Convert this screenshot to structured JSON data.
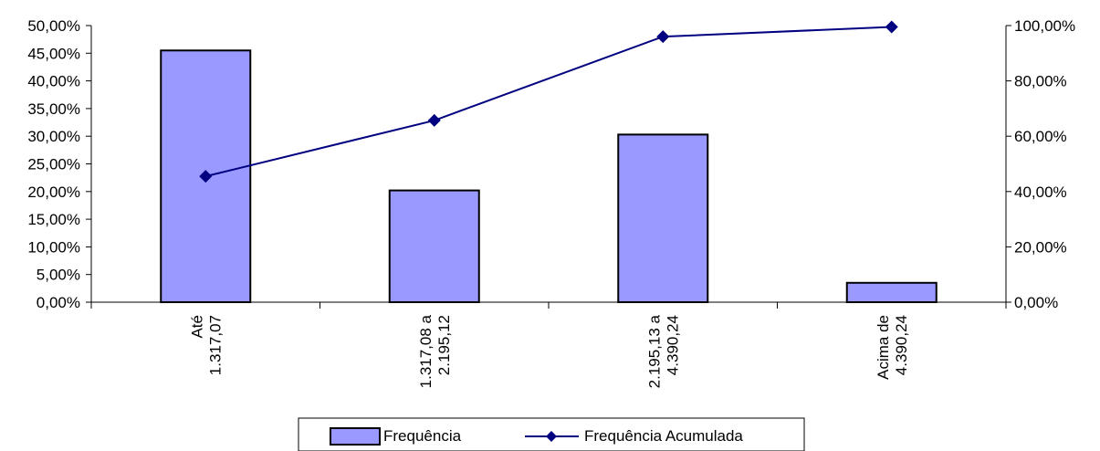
{
  "chart_data": {
    "type": "bar",
    "categories": [
      [
        "Até",
        "1.317,07"
      ],
      [
        "1.317,08 a",
        "2.195,12"
      ],
      [
        "2.195,13 a",
        "4.390,24"
      ],
      [
        "Acima de",
        "4.390,24"
      ]
    ],
    "series": [
      {
        "name": "Frequência",
        "type": "bar",
        "axis": "left",
        "values": [
          0.455,
          0.202,
          0.303,
          0.035
        ],
        "color": "#9999ff"
      },
      {
        "name": "Frequência Acumulada",
        "type": "line",
        "axis": "right",
        "values": [
          0.455,
          0.657,
          0.96,
          0.995
        ],
        "color": "#000080"
      }
    ],
    "y_left": {
      "ylim": [
        0,
        0.5
      ],
      "ticks": [
        "0,00%",
        "5,00%",
        "10,00%",
        "15,00%",
        "20,00%",
        "25,00%",
        "30,00%",
        "35,00%",
        "40,00%",
        "45,00%",
        "50,00%"
      ]
    },
    "y_right": {
      "ylim": [
        0,
        1.0
      ],
      "ticks": [
        "0,00%",
        "20,00%",
        "40,00%",
        "60,00%",
        "80,00%",
        "100,00%"
      ]
    },
    "grid": false,
    "legend": {
      "position": "bottom"
    }
  }
}
